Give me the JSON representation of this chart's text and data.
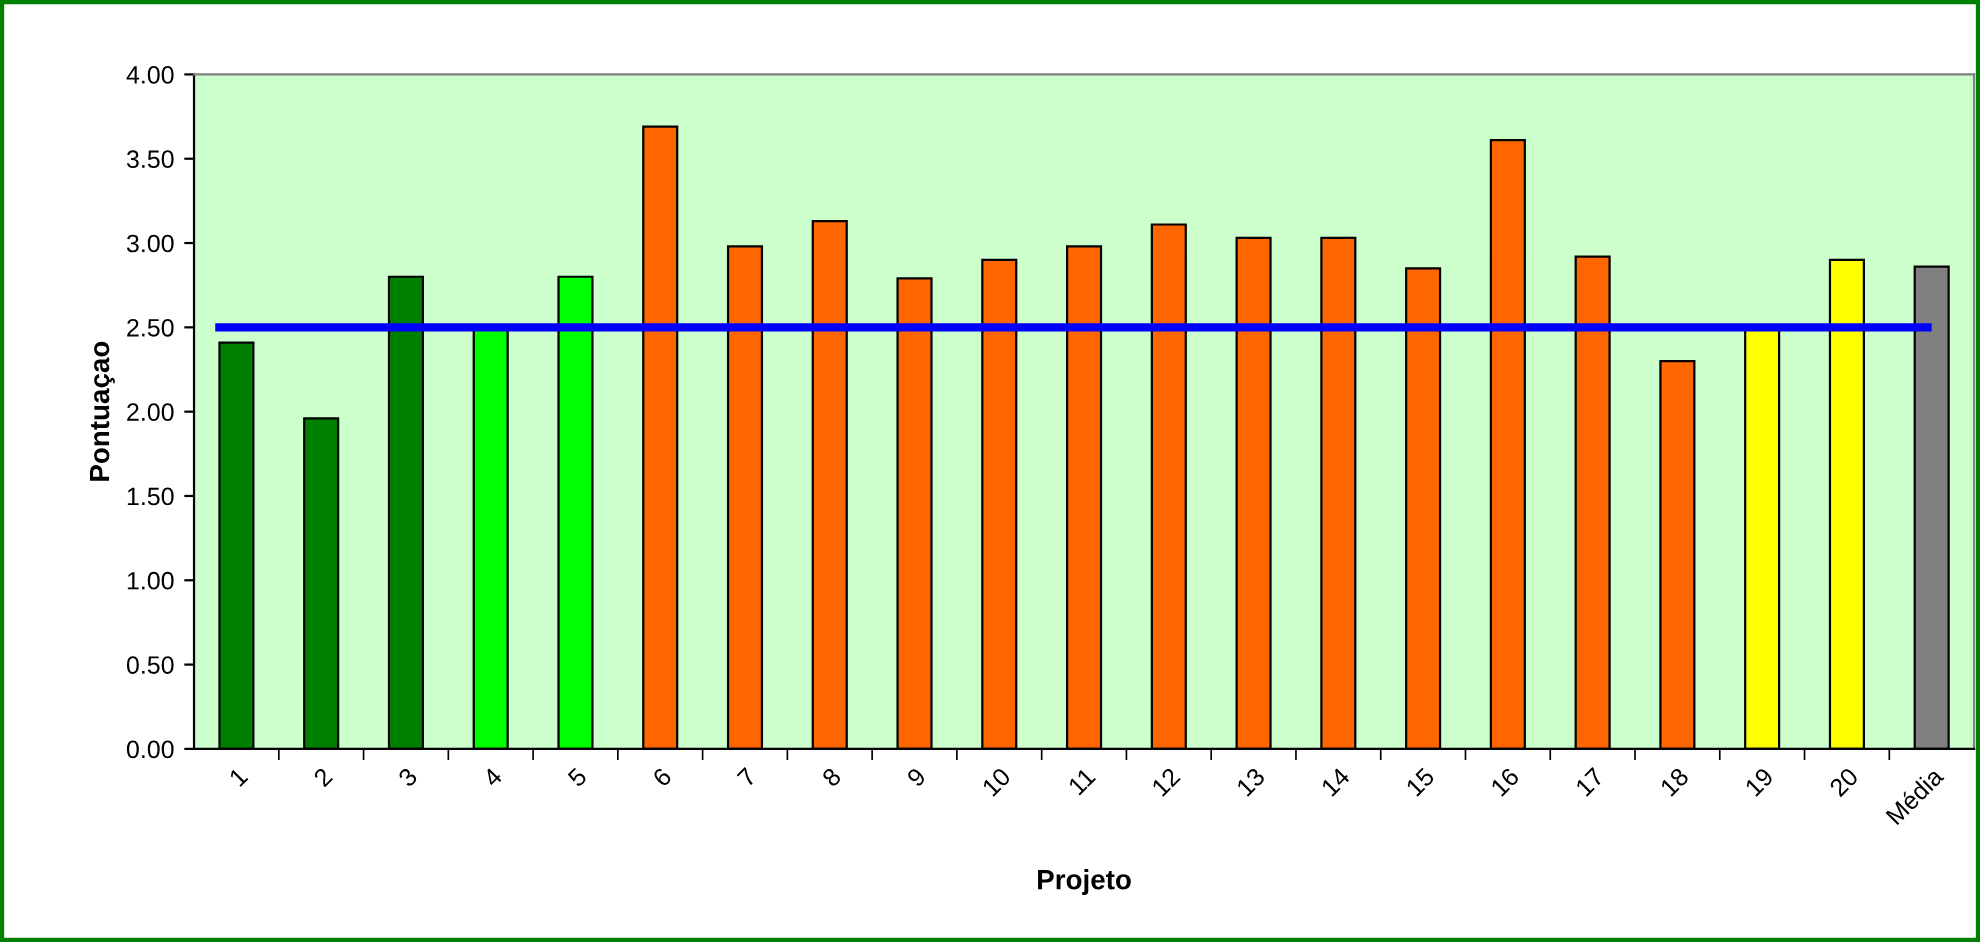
{
  "chart_data": {
    "type": "bar",
    "xlabel": "Projeto",
    "ylabel": "Pontuaçao",
    "categories": [
      "1",
      "2",
      "3",
      "4",
      "5",
      "6",
      "7",
      "8",
      "9",
      "10",
      "11",
      "12",
      "13",
      "14",
      "15",
      "16",
      "17",
      "18",
      "19",
      "20",
      "Média"
    ],
    "values": [
      2.41,
      1.96,
      2.8,
      2.5,
      2.8,
      3.69,
      2.98,
      3.13,
      2.79,
      2.9,
      2.98,
      3.11,
      3.03,
      3.03,
      2.85,
      3.61,
      2.92,
      2.3,
      2.5,
      2.9,
      2.86
    ],
    "colors": [
      "#008000",
      "#008000",
      "#008000",
      "#00ff00",
      "#00ff00",
      "#ff6600",
      "#ff6600",
      "#ff6600",
      "#ff6600",
      "#ff6600",
      "#ff6600",
      "#ff6600",
      "#ff6600",
      "#ff6600",
      "#ff6600",
      "#ff6600",
      "#ff6600",
      "#ff6600",
      "#ffff00",
      "#ffff00",
      "#808080"
    ],
    "ylim": [
      0,
      4
    ],
    "yticks": [
      {
        "value": 0,
        "label": "0.00"
      },
      {
        "value": 0.5,
        "label": "0.50"
      },
      {
        "value": 1,
        "label": "1.00"
      },
      {
        "value": 1.5,
        "label": "1.50"
      },
      {
        "value": 2,
        "label": "2.00"
      },
      {
        "value": 2.5,
        "label": "2.50"
      },
      {
        "value": 3,
        "label": "3.00"
      },
      {
        "value": 3.5,
        "label": "3.50"
      },
      {
        "value": 4,
        "label": "4.00"
      }
    ],
    "ref_lines": [
      {
        "axis": "y",
        "value": 2.5,
        "color": "#0000ff"
      }
    ],
    "grid": false,
    "legend": false
  }
}
